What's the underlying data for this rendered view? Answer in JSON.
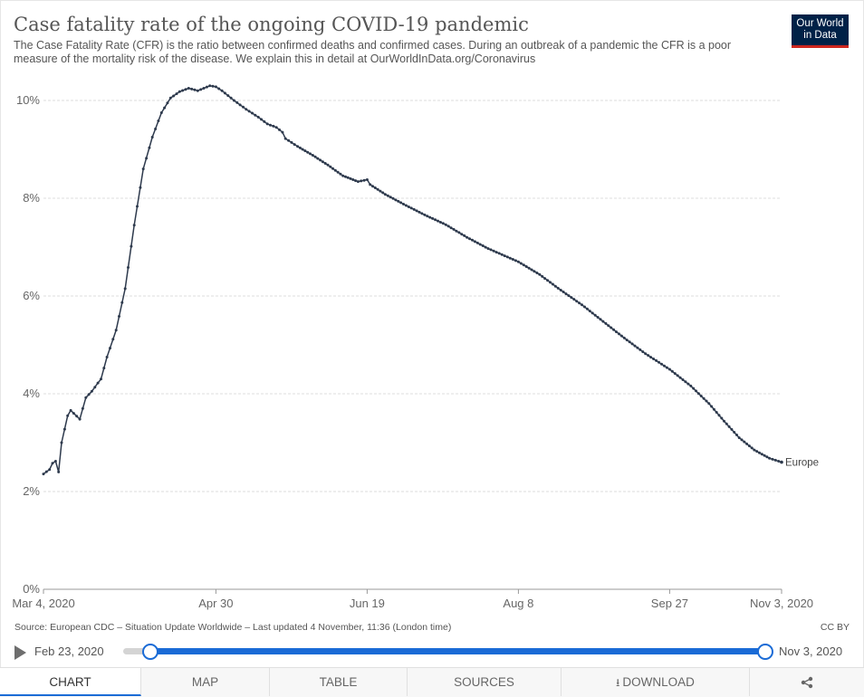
{
  "header": {
    "title": "Case fatality rate of the ongoing COVID-19 pandemic",
    "subtitle": "The Case Fatality Rate (CFR) is the ratio between confirmed deaths and confirmed cases. During an outbreak of a pandemic the CFR is a poor measure of the mortality risk of the disease. We explain this in detail at OurWorldInData.org/Coronavirus",
    "logo_line1": "Our World",
    "logo_line2": "in Data"
  },
  "footer": {
    "source": "Source: European CDC – Situation Update Worldwide – Last updated 4 November, 11:36 (London time)",
    "license": "CC BY"
  },
  "timeline": {
    "start_label": "Feb 23, 2020",
    "end_label": "Nov 3, 2020"
  },
  "tabs": {
    "chart": "CHART",
    "map": "MAP",
    "table": "TABLE",
    "sources": "SOURCES",
    "download": "DOWNLOAD",
    "download_icon": "download-icon",
    "share_icon": "share-icon"
  },
  "colors": {
    "line": "#2e3a4d",
    "grid": "#dddddd",
    "accent": "#1a6bd6",
    "logo_bg": "#002147",
    "logo_bar": "#ce261e"
  },
  "chart_data": {
    "type": "line",
    "title": "Case fatality rate of the ongoing COVID-19 pandemic",
    "x_ticks": [
      "Mar 4, 2020",
      "Apr 30",
      "Jun 19",
      "Aug 8",
      "Sep 27",
      "Nov 3, 2020"
    ],
    "x_tick_dates": [
      "2020-03-04",
      "2020-04-30",
      "2020-06-19",
      "2020-08-08",
      "2020-09-27",
      "2020-11-03"
    ],
    "y_ticks": [
      "0%",
      "2%",
      "4%",
      "6%",
      "8%",
      "10%"
    ],
    "y_tick_values": [
      0,
      2,
      4,
      6,
      8,
      10
    ],
    "ylim": [
      0,
      11
    ],
    "xlim": [
      "2020-03-04",
      "2020-11-03"
    ],
    "grid": true,
    "series": [
      {
        "name": "Europe",
        "x": [
          "2020-03-04",
          "2020-03-06",
          "2020-03-07",
          "2020-03-08",
          "2020-03-09",
          "2020-03-10",
          "2020-03-12",
          "2020-03-13",
          "2020-03-14",
          "2020-03-16",
          "2020-03-18",
          "2020-03-20",
          "2020-03-22",
          "2020-03-23",
          "2020-03-25",
          "2020-03-28",
          "2020-03-31",
          "2020-04-03",
          "2020-04-06",
          "2020-04-09",
          "2020-04-12",
          "2020-04-15",
          "2020-04-18",
          "2020-04-21",
          "2020-04-24",
          "2020-04-28",
          "2020-04-30",
          "2020-05-02",
          "2020-05-06",
          "2020-05-10",
          "2020-05-14",
          "2020-05-17",
          "2020-05-20",
          "2020-05-22",
          "2020-05-23",
          "2020-05-27",
          "2020-06-01",
          "2020-06-06",
          "2020-06-11",
          "2020-06-16",
          "2020-06-19",
          "2020-06-20",
          "2020-06-25",
          "2020-07-01",
          "2020-07-08",
          "2020-07-15",
          "2020-07-22",
          "2020-07-29",
          "2020-08-08",
          "2020-08-15",
          "2020-08-22",
          "2020-08-29",
          "2020-09-05",
          "2020-09-12",
          "2020-09-19",
          "2020-09-27",
          "2020-10-04",
          "2020-10-10",
          "2020-10-15",
          "2020-10-20",
          "2020-10-25",
          "2020-10-30",
          "2020-11-03"
        ],
        "y": [
          2.36,
          2.45,
          2.58,
          2.62,
          2.4,
          3.0,
          3.55,
          3.66,
          3.6,
          3.48,
          3.92,
          4.05,
          4.22,
          4.3,
          4.75,
          5.3,
          6.15,
          7.45,
          8.6,
          9.25,
          9.75,
          10.05,
          10.18,
          10.25,
          10.2,
          10.3,
          10.28,
          10.2,
          10.0,
          9.82,
          9.66,
          9.52,
          9.45,
          9.35,
          9.22,
          9.06,
          8.88,
          8.68,
          8.46,
          8.34,
          8.38,
          8.28,
          8.08,
          7.88,
          7.66,
          7.46,
          7.2,
          6.97,
          6.7,
          6.44,
          6.12,
          5.82,
          5.48,
          5.14,
          4.82,
          4.5,
          4.16,
          3.8,
          3.44,
          3.1,
          2.85,
          2.68,
          2.6
        ]
      }
    ]
  }
}
